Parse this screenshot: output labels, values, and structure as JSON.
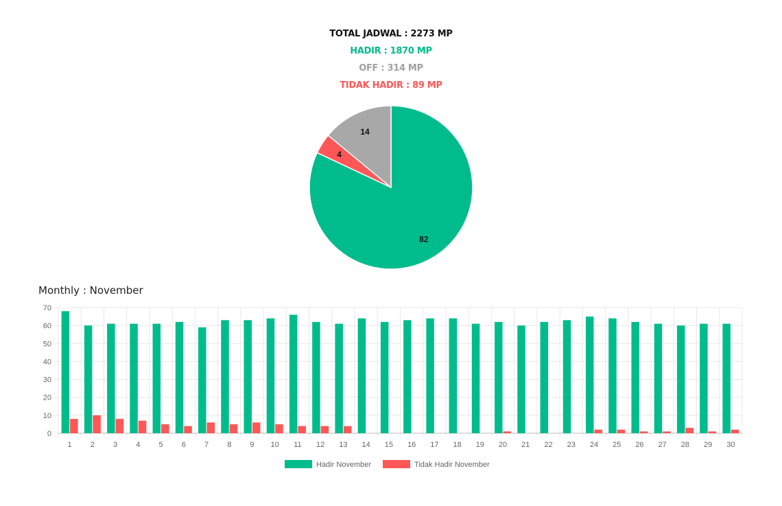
{
  "summary": {
    "total": "TOTAL JADWAL : 2273 MP",
    "hadir": "HADIR : 1870 MP",
    "off": "OFF : 314 MP",
    "tidak_hadir": "TIDAK HADIR : 89 MP"
  },
  "colors": {
    "total": "#111111",
    "hadir": "#00BC8C",
    "off": "#A0A0A0",
    "tidak_hadir": "#FF5757",
    "grid": "#E8E8E8",
    "axis": "#666666"
  },
  "monthly_title": "Monthly : November",
  "chart_data": [
    {
      "type": "pie",
      "slices": [
        {
          "label": "82",
          "value": 82,
          "color": "#00BC8C"
        },
        {
          "label": "4",
          "value": 4,
          "color": "#FF5757"
        },
        {
          "label": "14",
          "value": 14,
          "color": "#A8A8A8"
        }
      ]
    },
    {
      "type": "bar",
      "categories": [
        "1",
        "2",
        "3",
        "4",
        "5",
        "6",
        "7",
        "8",
        "9",
        "10",
        "11",
        "12",
        "13",
        "14",
        "15",
        "16",
        "17",
        "18",
        "19",
        "20",
        "21",
        "22",
        "23",
        "24",
        "25",
        "26",
        "27",
        "28",
        "29",
        "30"
      ],
      "series": [
        {
          "name": "Hadir November",
          "color": "#00BC8C",
          "values": [
            68,
            60,
            61,
            61,
            61,
            62,
            59,
            63,
            63,
            64,
            66,
            62,
            61,
            64,
            62,
            63,
            64,
            64,
            61,
            62,
            60,
            62,
            63,
            65,
            64,
            62,
            61,
            60,
            61,
            61
          ]
        },
        {
          "name": "Tidak Hadir November",
          "color": "#FF5757",
          "values": [
            8,
            10,
            8,
            7,
            5,
            4,
            6,
            5,
            6,
            5,
            4,
            4,
            4,
            0,
            0,
            0,
            0,
            0,
            0,
            1,
            0,
            0,
            0,
            2,
            2,
            1,
            1,
            3,
            1,
            2
          ]
        }
      ],
      "yticks": [
        "0",
        "10",
        "20",
        "30",
        "40",
        "50",
        "60",
        "70"
      ],
      "ylim": [
        0,
        70
      ],
      "grid": true,
      "legend": "bottom"
    }
  ]
}
